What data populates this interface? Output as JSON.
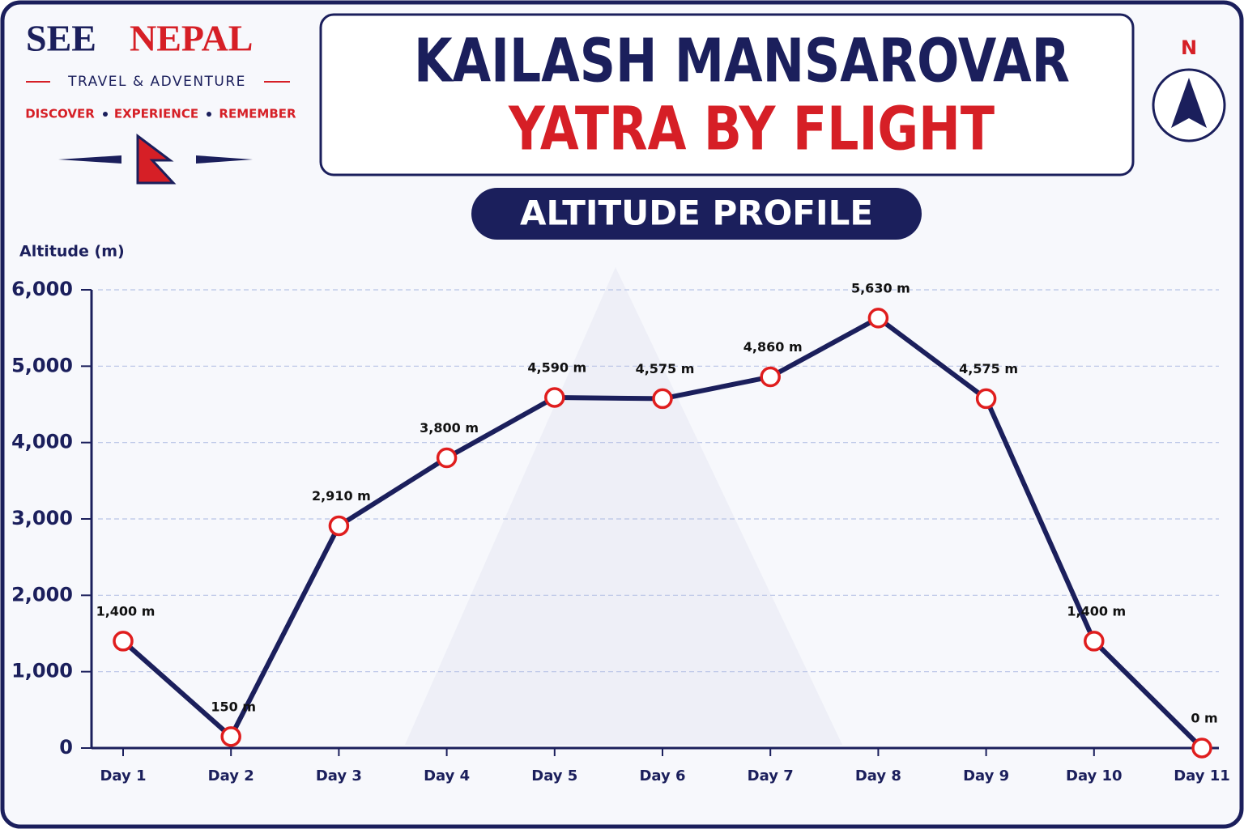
{
  "brand": {
    "name": [
      "SEE",
      "NEPAL"
    ],
    "tagline": "TRAVEL & ADVENTURE",
    "motto": [
      "DISCOVER",
      "EXPERIENCE",
      "REMEMBER"
    ],
    "compass": "N"
  },
  "chart_data": {
    "type": "line",
    "title": [
      "KAILASH MANSAROVAR",
      "YATRA BY FLIGHT"
    ],
    "subtitle": "ALTITUDE PROFILE",
    "y_label": "Altitude (m)",
    "categories": [
      "Day 1",
      "Day 2",
      "Day 3",
      "Day 4",
      "Day 5",
      "Day 6",
      "Day 7",
      "Day 8",
      "Day 9",
      "Day 10",
      "Day 11"
    ],
    "series": [
      {
        "name": "Altitude",
        "color": "#1b1f5c",
        "marker_color": "#e01e1e",
        "values": [
          1400,
          150,
          2910,
          3800,
          4590,
          4575,
          4860,
          5630,
          4575,
          1400,
          0
        ],
        "value_labels": [
          "1,400 m",
          "150 m",
          "2,910 m",
          "3,800 m",
          "4,590 m",
          "4,575 m",
          "4,860 m",
          "5,630 m",
          "4,575 m",
          "1,400 m",
          "0 m"
        ]
      }
    ],
    "ylim": [
      0,
      6000
    ],
    "yticks": [
      0,
      {
        "value": 1000,
        "label": "1,000"
      },
      {
        "value": 2000,
        "label": "2,000"
      },
      {
        "value": 3000,
        "label": "3,000"
      },
      {
        "value": 4000,
        "label": "4,000"
      },
      {
        "value": 5000,
        "label": "5,000"
      },
      {
        "value": 6000,
        "label": "6,000"
      }
    ],
    "grid": true
  }
}
